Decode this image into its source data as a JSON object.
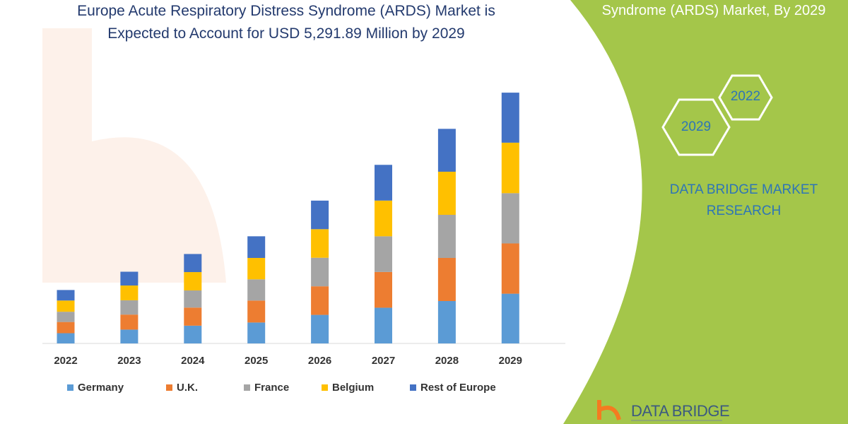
{
  "title_lines": [
    "Europe Acute Respiratory Distress Syndrome (ARDS) Market is",
    "Expected to Account for USD 5,291.89 Million by 2029"
  ],
  "side_panel": {
    "heading": "Syndrome (ARDS) Market, By 2029",
    "hex_years": [
      "2022",
      "2029"
    ],
    "brand_lines": [
      "DATA BRIDGE MARKET",
      "RESEARCH"
    ],
    "logo_text": "DATA BRIDGE",
    "color": "#a4c64a"
  },
  "chart_data": {
    "type": "bar",
    "stacked": true,
    "categories": [
      "2022",
      "2023",
      "2024",
      "2025",
      "2026",
      "2027",
      "2028",
      "2029"
    ],
    "series": [
      {
        "name": "Germany",
        "color": "#5b9bd5",
        "values": [
          216,
          292,
          375,
          442,
          603,
          754,
          895,
          1050
        ]
      },
      {
        "name": "U.K.",
        "color": "#ed7d31",
        "values": [
          237,
          317,
          382,
          463,
          603,
          754,
          910,
          1061
        ]
      },
      {
        "name": "France",
        "color": "#a5a5a5",
        "values": [
          216,
          302,
          362,
          448,
          603,
          754,
          910,
          1061
        ]
      },
      {
        "name": "Belgium",
        "color": "#ffc000",
        "values": [
          237,
          312,
          387,
          452,
          603,
          754,
          910,
          1066
        ]
      },
      {
        "name": "Rest of Europe",
        "color": "#4472c4",
        "values": [
          222,
          291,
          382,
          457,
          603,
          754,
          905,
          1056
        ]
      }
    ],
    "ylim": [
      0,
      5400
    ],
    "grid": false,
    "legend": "bottom",
    "xlabel": "",
    "ylabel": ""
  }
}
